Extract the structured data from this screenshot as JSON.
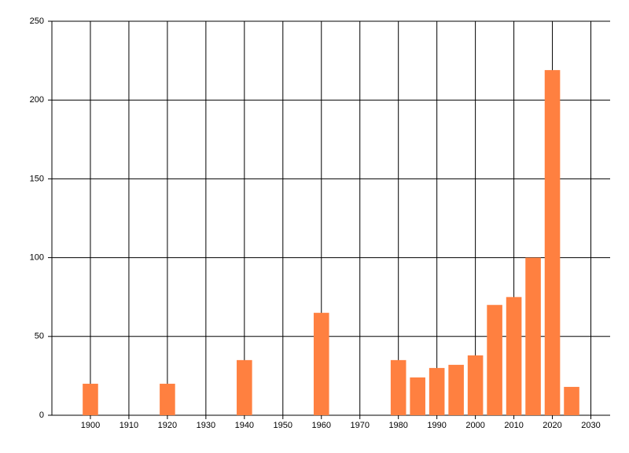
{
  "chart_data": {
    "type": "bar",
    "x": [
      1900,
      1920,
      1940,
      1960,
      1980,
      1985,
      1990,
      1995,
      2000,
      2005,
      2010,
      2015,
      2020,
      2025
    ],
    "values": [
      20,
      20,
      35,
      65,
      35,
      24,
      30,
      32,
      38,
      70,
      75,
      100,
      219,
      18
    ],
    "color": "#ff8040",
    "bar_width": 4,
    "xlim": [
      1890,
      2035
    ],
    "xticks": [
      1900,
      1910,
      1920,
      1930,
      1940,
      1950,
      1960,
      1970,
      1980,
      1990,
      2000,
      2010,
      2020,
      2030
    ],
    "ylim": [
      0,
      250
    ],
    "yticks": [
      0,
      50,
      100,
      150,
      200,
      250
    ],
    "grid": true
  }
}
